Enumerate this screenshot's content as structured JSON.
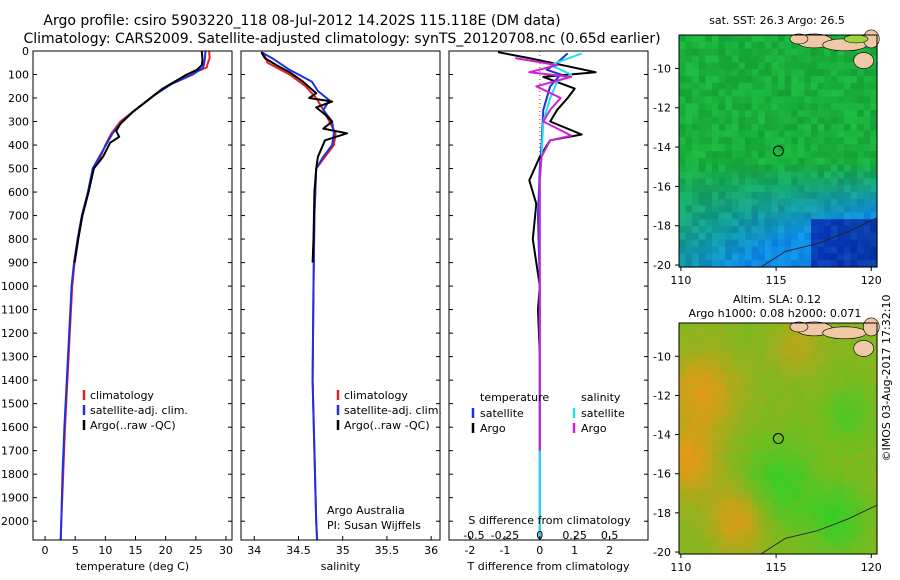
{
  "header": {
    "line1": "Argo profile: csiro 5903220_118 08-Jul-2012 14.202S 115.118E (DM data)",
    "line2": "Climatology: CARS2009. Satellite-adjusted climatology: synTS_20120708.nc (0.65d earlier)"
  },
  "copyright": "©IMOS 03-Aug-2017 17:32:10",
  "colors": {
    "climatology": "#e82020",
    "satellite": "#2030e0",
    "argo": "#000000",
    "salinity_sat": "#20e0e8",
    "salinity_argo": "#d020d8"
  },
  "chart_data": [
    {
      "type": "line",
      "name": "temperature profile",
      "xlabel": "temperature (deg C)",
      "xlim": [
        -2,
        31
      ],
      "ylim": [
        2080,
        0
      ],
      "xticks": [
        0,
        5,
        10,
        15,
        20,
        25,
        30
      ],
      "yticks": [
        0,
        100,
        200,
        300,
        400,
        500,
        600,
        700,
        800,
        900,
        1000,
        1100,
        1200,
        1300,
        1400,
        1500,
        1600,
        1700,
        1800,
        1900,
        2000
      ],
      "legend": [
        "climatology",
        "satellite-adj. clim.",
        "Argo(..raw -QC)"
      ],
      "legend_colors": [
        "#e82020",
        "#2030e0",
        "#000000"
      ],
      "series": [
        {
          "name": "climatology",
          "color": "#e82020",
          "points": [
            [
              27.2,
              0
            ],
            [
              27.3,
              30
            ],
            [
              27.0,
              50
            ],
            [
              26.8,
              70
            ],
            [
              24.0,
              100
            ],
            [
              21.5,
              130
            ],
            [
              18.5,
              180
            ],
            [
              15.5,
              240
            ],
            [
              12.5,
              300
            ],
            [
              11.0,
              350
            ],
            [
              10.0,
              400
            ],
            [
              9.2,
              450
            ],
            [
              8.0,
              500
            ],
            [
              7.2,
              600
            ],
            [
              6.2,
              700
            ],
            [
              5.5,
              800
            ],
            [
              4.9,
              900
            ],
            [
              4.5,
              1000
            ],
            [
              4.1,
              1200
            ],
            [
              3.7,
              1400
            ],
            [
              3.3,
              1600
            ],
            [
              3.0,
              1800
            ],
            [
              2.7,
              2000
            ],
            [
              2.6,
              2080
            ]
          ]
        },
        {
          "name": "satellite-adj. clim.",
          "color": "#2030e0",
          "points": [
            [
              26.6,
              0
            ],
            [
              26.5,
              30
            ],
            [
              26.4,
              50
            ],
            [
              26.2,
              70
            ],
            [
              24.5,
              100
            ],
            [
              21.0,
              140
            ],
            [
              18.0,
              190
            ],
            [
              15.0,
              250
            ],
            [
              12.8,
              300
            ],
            [
              11.2,
              350
            ],
            [
              10.1,
              400
            ],
            [
              9.0,
              450
            ],
            [
              7.9,
              500
            ],
            [
              7.1,
              600
            ],
            [
              6.1,
              700
            ],
            [
              5.4,
              800
            ],
            [
              4.8,
              900
            ],
            [
              4.4,
              1000
            ],
            [
              4.0,
              1200
            ],
            [
              3.6,
              1400
            ],
            [
              3.2,
              1600
            ],
            [
              2.9,
              1800
            ],
            [
              2.7,
              2000
            ],
            [
              2.6,
              2080
            ]
          ]
        },
        {
          "name": "Argo(..raw -QC)",
          "color": "#000000",
          "points": [
            [
              26.0,
              0
            ],
            [
              26.1,
              40
            ],
            [
              26.0,
              60
            ],
            [
              25.2,
              80
            ],
            [
              23.5,
              100
            ],
            [
              21.5,
              130
            ],
            [
              19.5,
              160
            ],
            [
              17.0,
              210
            ],
            [
              14.5,
              260
            ],
            [
              12.5,
              310
            ],
            [
              11.8,
              340
            ],
            [
              12.3,
              365
            ],
            [
              10.8,
              390
            ],
            [
              9.6,
              450
            ],
            [
              8.1,
              500
            ],
            [
              7.2,
              600
            ],
            [
              6.2,
              700
            ],
            [
              5.5,
              800
            ],
            [
              4.9,
              900
            ]
          ]
        }
      ]
    },
    {
      "type": "line",
      "name": "salinity profile",
      "xlabel": "salinity",
      "xlim": [
        33.85,
        36.1
      ],
      "ylim": [
        2080,
        0
      ],
      "xticks": [
        34,
        34.5,
        35,
        35.5,
        36
      ],
      "legend": [
        "climatology",
        "satellite-adj. clim.",
        "Argo(..raw -QC)"
      ],
      "legend_colors": [
        "#e82020",
        "#2030e0",
        "#000000"
      ],
      "annotation": [
        "Argo Australia",
        "PI: Susan Wijffels"
      ],
      "series": [
        {
          "name": "climatology",
          "color": "#e82020",
          "points": [
            [
              34.1,
              5
            ],
            [
              34.15,
              50
            ],
            [
              34.4,
              100
            ],
            [
              34.58,
              150
            ],
            [
              34.7,
              200
            ],
            [
              34.78,
              250
            ],
            [
              34.85,
              300
            ],
            [
              34.92,
              350
            ],
            [
              34.9,
              400
            ],
            [
              34.8,
              450
            ],
            [
              34.7,
              500
            ],
            [
              34.68,
              700
            ],
            [
              34.67,
              1000
            ],
            [
              34.66,
              1400
            ],
            [
              34.68,
              1700
            ],
            [
              34.7,
              2000
            ],
            [
              34.71,
              2080
            ]
          ]
        },
        {
          "name": "satellite-adj. clim.",
          "color": "#2030e0",
          "points": [
            [
              34.08,
              5
            ],
            [
              34.2,
              30
            ],
            [
              34.4,
              80
            ],
            [
              34.65,
              130
            ],
            [
              34.72,
              170
            ],
            [
              34.85,
              210
            ],
            [
              34.78,
              250
            ],
            [
              34.88,
              300
            ],
            [
              34.9,
              350
            ],
            [
              34.88,
              400
            ],
            [
              34.78,
              450
            ],
            [
              34.7,
              500
            ],
            [
              34.68,
              700
            ],
            [
              34.67,
              1000
            ],
            [
              34.66,
              1400
            ],
            [
              34.68,
              1700
            ],
            [
              34.7,
              2000
            ],
            [
              34.71,
              2080
            ]
          ]
        },
        {
          "name": "Argo(..raw -QC)",
          "color": "#000000",
          "points": [
            [
              34.08,
              5
            ],
            [
              34.12,
              30
            ],
            [
              34.25,
              60
            ],
            [
              34.4,
              90
            ],
            [
              34.55,
              130
            ],
            [
              34.7,
              180
            ],
            [
              34.62,
              200
            ],
            [
              34.88,
              215
            ],
            [
              34.7,
              240
            ],
            [
              34.8,
              270
            ],
            [
              34.88,
              300
            ],
            [
              34.78,
              330
            ],
            [
              35.05,
              350
            ],
            [
              34.8,
              380
            ],
            [
              34.72,
              450
            ],
            [
              34.7,
              500
            ],
            [
              34.68,
              600
            ],
            [
              34.67,
              800
            ],
            [
              34.66,
              900
            ]
          ]
        }
      ]
    },
    {
      "type": "line",
      "name": "difference from climatology",
      "xlabel": "T difference from climatology",
      "xlabel_top": "S difference from climatology",
      "xlim": [
        -2.6,
        3.1
      ],
      "ylim": [
        2080,
        0
      ],
      "xticks": [
        -2,
        -1,
        0,
        1,
        2
      ],
      "xticks_top_labels": [
        "-0.5",
        "-0.25",
        "0",
        "0.25",
        "0.5"
      ],
      "legend_left_title": "temperature",
      "legend_right_title": "salinity",
      "legend_left": [
        "satellite",
        "Argo"
      ],
      "legend_right": [
        "satellite",
        "Argo"
      ],
      "legend_left_colors": [
        "#2030e0",
        "#000000"
      ],
      "legend_right_colors": [
        "#20e0e8",
        "#d020d8"
      ],
      "series": [
        {
          "name": "temperature satellite",
          "color": "#2030e0",
          "points": [
            [
              0.8,
              10
            ],
            [
              0.5,
              50
            ],
            [
              0.2,
              80
            ],
            [
              0.6,
              100
            ],
            [
              0.3,
              150
            ],
            [
              0.1,
              250
            ],
            [
              0.05,
              400
            ],
            [
              0,
              500
            ],
            [
              -0.05,
              700
            ],
            [
              0,
              1000
            ],
            [
              0,
              1500
            ],
            [
              0,
              2080
            ]
          ]
        },
        {
          "name": "temperature Argo",
          "color": "#000000",
          "points": [
            [
              -1.2,
              5
            ],
            [
              -0.3,
              30
            ],
            [
              1.6,
              90
            ],
            [
              0.1,
              110
            ],
            [
              1.0,
              160
            ],
            [
              0.8,
              200
            ],
            [
              0.5,
              250
            ],
            [
              0.3,
              300
            ],
            [
              1.2,
              355
            ],
            [
              0.3,
              380
            ],
            [
              0.0,
              450
            ],
            [
              -0.3,
              550
            ],
            [
              -0.1,
              650
            ],
            [
              -0.2,
              800
            ],
            [
              0,
              1000
            ],
            [
              -0.05,
              1100
            ],
            [
              0,
              1300
            ],
            [
              0,
              1500
            ],
            [
              0,
              1700
            ]
          ]
        },
        {
          "name": "salinity satellite",
          "color": "#20e0e8",
          "points": [
            [
              1.2,
              10
            ],
            [
              0.3,
              60
            ],
            [
              0.9,
              100
            ],
            [
              0.5,
              130
            ],
            [
              0.3,
              200
            ],
            [
              0.1,
              300
            ],
            [
              0.05,
              450
            ],
            [
              0,
              550
            ],
            [
              0,
              1000
            ],
            [
              0,
              1500
            ],
            [
              0,
              2080
            ]
          ]
        },
        {
          "name": "salinity Argo",
          "color": "#d020d8",
          "points": [
            [
              -0.7,
              30
            ],
            [
              0.5,
              60
            ],
            [
              -0.3,
              90
            ],
            [
              0.9,
              110
            ],
            [
              -0.1,
              150
            ],
            [
              0.6,
              200
            ],
            [
              0.3,
              250
            ],
            [
              0.1,
              300
            ],
            [
              0.9,
              360
            ],
            [
              0.3,
              380
            ],
            [
              0.05,
              450
            ],
            [
              0,
              550
            ],
            [
              0,
              1000
            ],
            [
              0,
              1500
            ],
            [
              0,
              1700
            ]
          ]
        }
      ]
    },
    {
      "type": "heatmap",
      "name": "satellite SST map",
      "title": "sat. SST: 26.3  Argo: 26.5",
      "xlim": [
        109.9,
        120.3
      ],
      "ylim": [
        -20.1,
        -8.3
      ],
      "xticks": [
        110,
        115,
        120
      ],
      "yticks": [
        -10,
        -12,
        -14,
        -16,
        -18,
        -20
      ],
      "marker": [
        115.118,
        -14.202
      ]
    },
    {
      "type": "heatmap",
      "name": "altimetry SLA map",
      "title": "Altim. SLA: 0.12",
      "subtitle": "Argo h1000: 0.08  h2000: 0.071",
      "xlim": [
        109.9,
        120.3
      ],
      "ylim": [
        -20.1,
        -8.3
      ],
      "xticks": [
        110,
        115,
        120
      ],
      "yticks": [
        -10,
        -12,
        -14,
        -16,
        -18,
        -20
      ],
      "marker": [
        115.118,
        -14.202
      ]
    }
  ]
}
